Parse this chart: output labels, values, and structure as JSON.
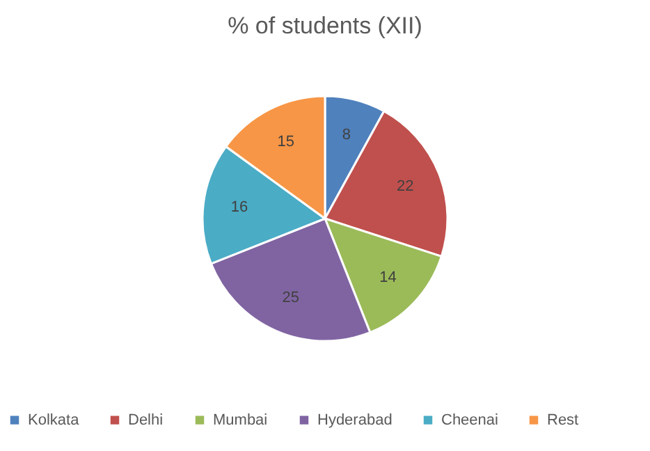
{
  "chart_data": {
    "type": "pie",
    "title": "% of students (XII)",
    "categories": [
      "Kolkata",
      "Delhi",
      "Mumbai",
      "Hyderabad",
      "Cheenai",
      "Rest"
    ],
    "values": [
      8,
      22,
      14,
      25,
      16,
      15
    ],
    "colors": [
      "#4f81bd",
      "#c0504d",
      "#9bbb59",
      "#8064a2",
      "#4bacc6",
      "#f79646"
    ],
    "data_labels": true,
    "legend": "bottom"
  }
}
